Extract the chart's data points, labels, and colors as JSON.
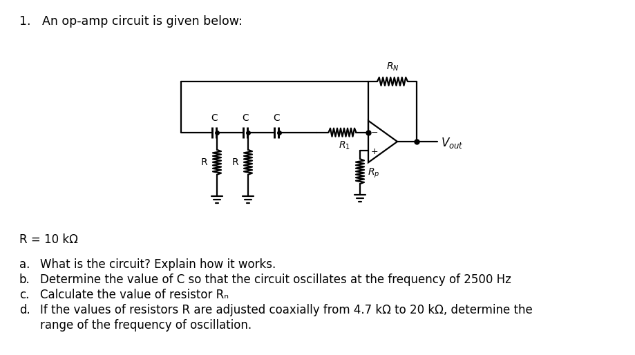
{
  "title": "1.   An op-amp circuit is given below:",
  "R_eq": "R = 10 kΩ",
  "questions": [
    [
      "a.",
      "What is the circuit? Explain how it works."
    ],
    [
      "b.",
      "Determine the value of C so that the circuit oscillates at the frequency of 2500 Hz"
    ],
    [
      "c.",
      "Calculate the value of resistor Rₙ"
    ],
    [
      "d.",
      "If the values of resistors R are adjusted coaxially from 4.7 kΩ to 20 kΩ, determine the"
    ],
    [
      "",
      "range of the frequency of oscillation."
    ]
  ],
  "bg_color": "#ffffff",
  "text_color": "#000000",
  "font_size_title": 12.5,
  "font_size_body": 12
}
